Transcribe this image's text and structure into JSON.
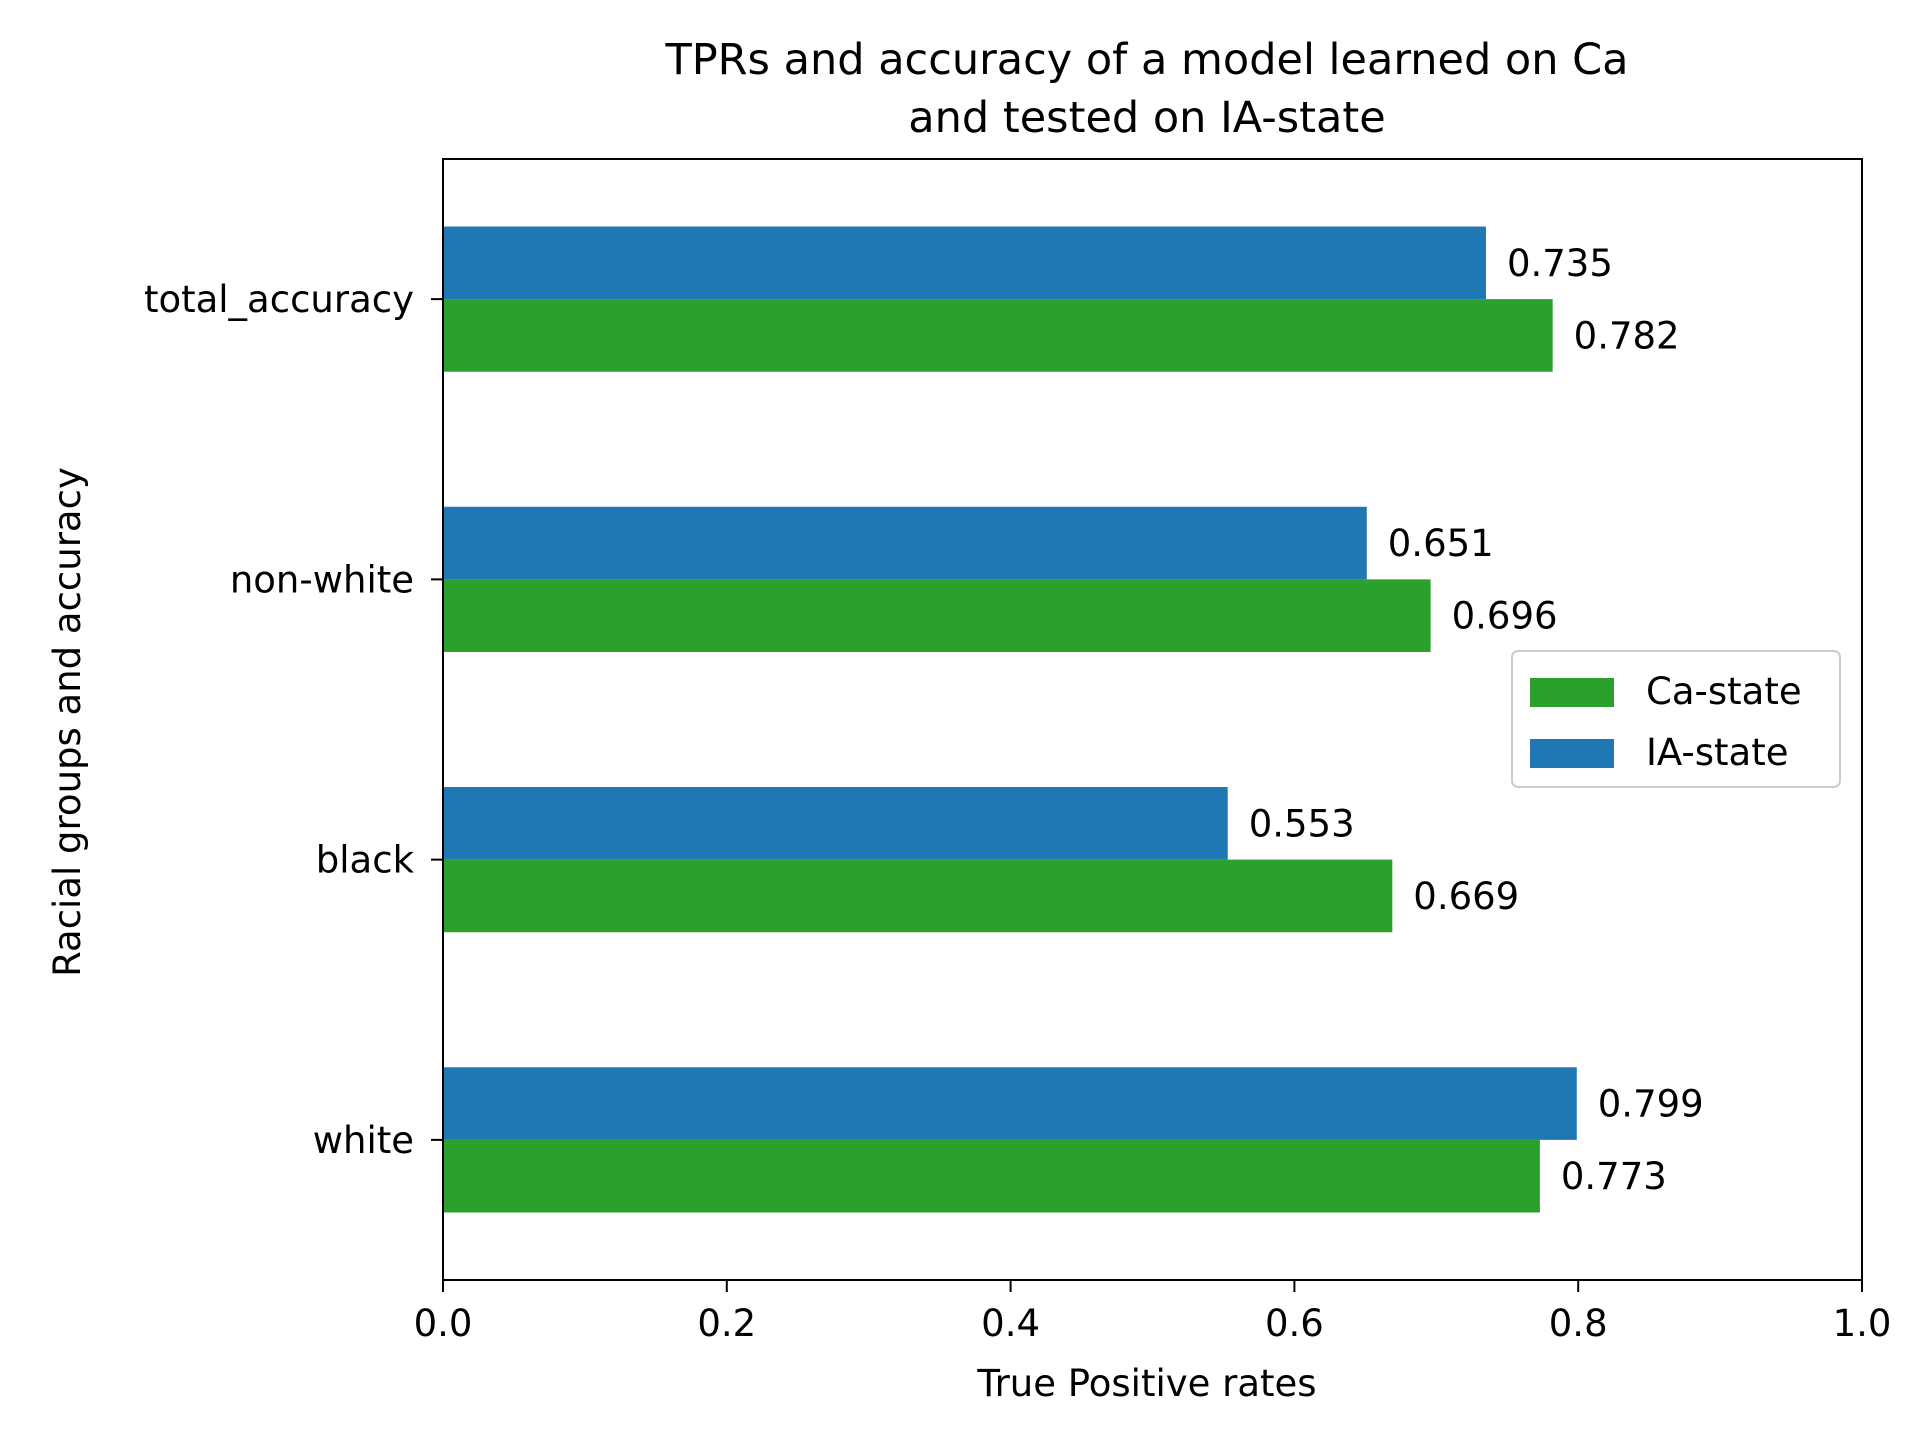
{
  "chart_data": {
    "type": "bar",
    "orientation": "horizontal",
    "title_lines": [
      "TPRs and accuracy of a model learned on Ca",
      "and tested on IA-state"
    ],
    "xlabel": "True Positive rates",
    "ylabel": "Racial groups and accuracy",
    "categories": [
      "white",
      "black",
      "non-white",
      "total_accuracy"
    ],
    "series": [
      {
        "name": "Ca-state",
        "color": "#2ca02c",
        "values": [
          0.773,
          0.669,
          0.696,
          0.782
        ]
      },
      {
        "name": "IA-state",
        "color": "#1f77b4",
        "values": [
          0.799,
          0.553,
          0.651,
          0.735
        ]
      }
    ],
    "xlim": [
      0.0,
      1.0
    ],
    "xticks": [
      "0.0",
      "0.2",
      "0.4",
      "0.6",
      "0.8",
      "1.0"
    ],
    "grid": false,
    "legend_position": "center-right",
    "data_labels": true
  }
}
